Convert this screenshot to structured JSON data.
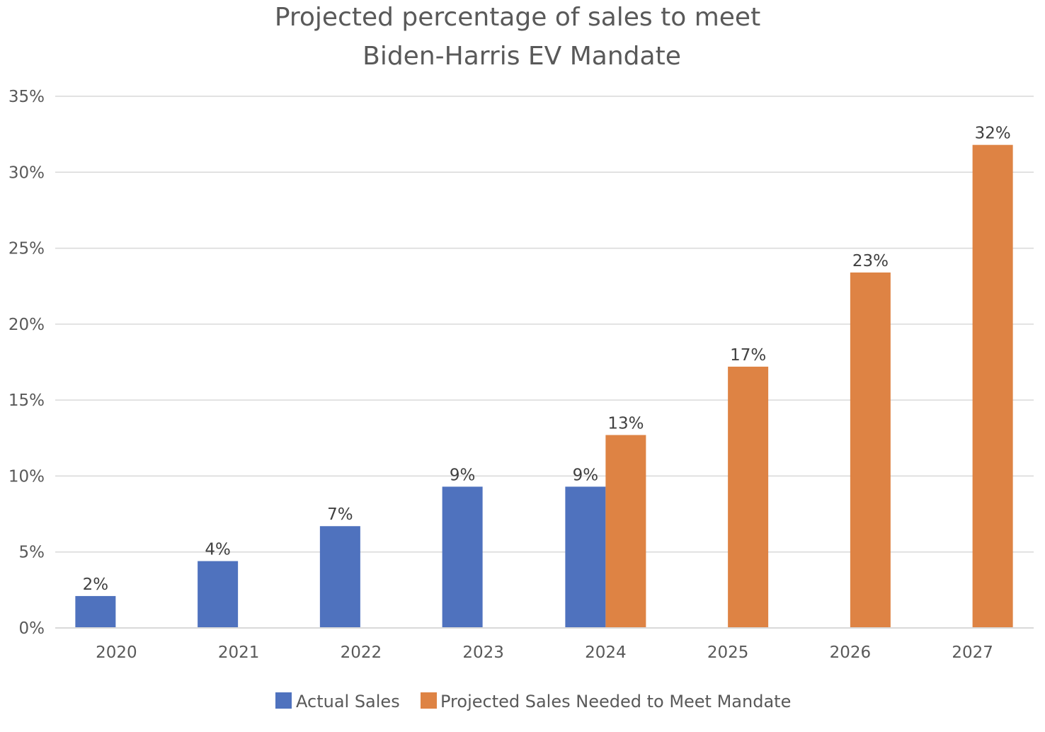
{
  "chart_data": {
    "type": "bar",
    "title": [
      "Projected percentage of sales to meet",
      "Biden-Harris EV Mandate"
    ],
    "categories": [
      "2020",
      "2021",
      "2022",
      "2023",
      "2024",
      "2025",
      "2026",
      "2027"
    ],
    "series": [
      {
        "name": "Actual Sales",
        "color": "#4f72be",
        "values": [
          2.1,
          4.4,
          6.7,
          9.3,
          9.3,
          null,
          null,
          null
        ],
        "labels": [
          "2%",
          "4%",
          "7%",
          "9%",
          "9%",
          null,
          null,
          null
        ]
      },
      {
        "name": "Projected Sales Needed to Meet Mandate",
        "color": "#de8344",
        "values": [
          null,
          null,
          null,
          null,
          12.7,
          17.2,
          23.4,
          31.8
        ],
        "labels": [
          null,
          null,
          null,
          null,
          "13%",
          "17%",
          "23%",
          "32%"
        ]
      }
    ],
    "ylim": [
      0,
      35
    ],
    "yticks": [
      0,
      5,
      10,
      15,
      20,
      25,
      30,
      35
    ],
    "ytick_labels": [
      "0%",
      "5%",
      "10%",
      "15%",
      "20%",
      "25%",
      "30%",
      "35%"
    ],
    "grid": true,
    "legend": "bottom"
  }
}
